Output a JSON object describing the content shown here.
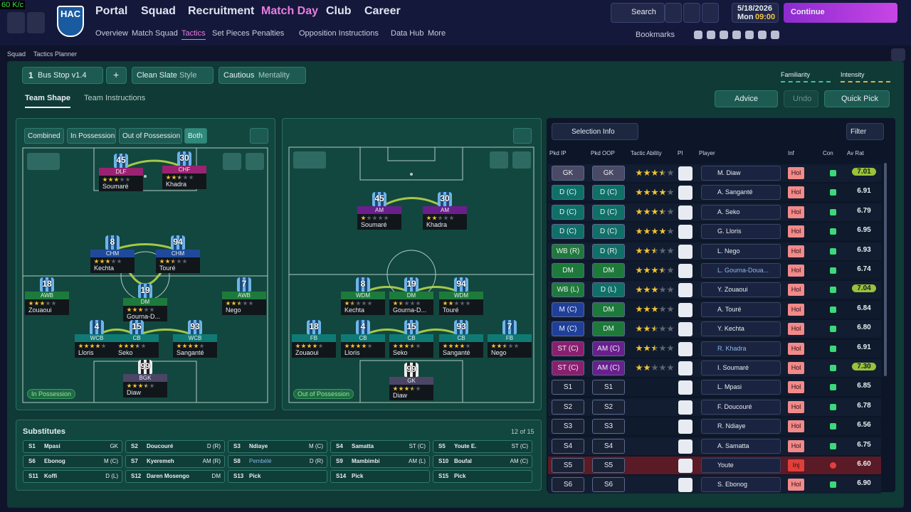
{
  "fps": "60 K/c",
  "header": {
    "badge": "HAC",
    "menu": [
      "Portal",
      "Squad",
      "Recruitment",
      "Match Day",
      "Club",
      "Career"
    ],
    "submenu": [
      "Overview",
      "Match Squad",
      "Tactics",
      "Set Pieces",
      "Penalties",
      "Opposition Instructions",
      "Data Hub",
      "More"
    ],
    "search": "Search",
    "date": "5/18/2026",
    "day": "Mon",
    "time": "09:00",
    "continue": "Continue",
    "bookmarks": "Bookmarks"
  },
  "breadcrumb": [
    "Squad",
    "Tactics Planner"
  ],
  "tactic": {
    "slot": "1",
    "name": "Bus Stop v1.4",
    "add": "+",
    "style": "Clean Slate",
    "style_label": "Style",
    "mentality": "Cautious",
    "mentality_label": "Mentality",
    "familiarity": "Familiarity",
    "intensity": "Intensity"
  },
  "tabs": [
    "Team Shape",
    "Team Instructions"
  ],
  "actions": {
    "advice": "Advice",
    "undo": "Undo",
    "quick_pick": "Quick Pick"
  },
  "shape_filters": [
    "Combined",
    "In Possession",
    "Out of Possession",
    "Both"
  ],
  "pitches": [
    {
      "label": "In Possession",
      "players": [
        {
          "number": "45",
          "role": "DLF",
          "name": "Soumaré",
          "stars": 3
        },
        {
          "number": "30",
          "role": "CHF",
          "name": "Khadra",
          "stars": 2.5
        },
        {
          "number": "8",
          "role": "CHM",
          "name": "Kechta",
          "stars": 3
        },
        {
          "number": "94",
          "role": "CHM",
          "name": "Touré",
          "stars": 2.5
        },
        {
          "number": "18",
          "role": "AWB",
          "name": "Zouaoui",
          "stars": 3
        },
        {
          "number": "19",
          "role": "DM",
          "name": "Gourna-D...",
          "stars": 3
        },
        {
          "number": "7",
          "role": "AWB",
          "name": "Nego",
          "stars": 2.5
        },
        {
          "number": "4",
          "role": "WCB",
          "name": "Lloris",
          "stars": 4
        },
        {
          "number": "15",
          "role": "CB",
          "name": "Seko",
          "stars": 3.5
        },
        {
          "number": "93",
          "role": "WCB",
          "name": "Sanganté",
          "stars": 4
        },
        {
          "number": "99",
          "role": "BGK",
          "name": "Diaw",
          "stars": 3.5
        }
      ]
    },
    {
      "label": "Out of Possession",
      "players": [
        {
          "number": "45",
          "role": "AM",
          "name": "Soumaré",
          "stars": 1
        },
        {
          "number": "30",
          "role": "AM",
          "name": "Khadra",
          "stars": 2
        },
        {
          "number": "8",
          "role": "WDM",
          "name": "Kechta",
          "stars": 1.5
        },
        {
          "number": "19",
          "role": "DM",
          "name": "Gourna-D...",
          "stars": 1.5
        },
        {
          "number": "94",
          "role": "WDM",
          "name": "Touré",
          "stars": 2
        },
        {
          "number": "18",
          "role": "FB",
          "name": "Zouaoui",
          "stars": 4
        },
        {
          "number": "4",
          "role": "CB",
          "name": "Lloris",
          "stars": 4
        },
        {
          "number": "15",
          "role": "CB",
          "name": "Seko",
          "stars": 3.5
        },
        {
          "number": "93",
          "role": "CB",
          "name": "Sanganté",
          "stars": 4
        },
        {
          "number": "7",
          "role": "FB",
          "name": "Nego",
          "stars": 2.5
        },
        {
          "number": "99",
          "role": "GK",
          "name": "Diaw",
          "stars": 3.5
        }
      ]
    }
  ],
  "substitutes": {
    "title": "Substitutes",
    "count": "12 of 15",
    "slots": [
      {
        "slot": "S1",
        "name": "Mpasi",
        "position": "GK"
      },
      {
        "slot": "S2",
        "name": "Doucouré",
        "position": "D (R)"
      },
      {
        "slot": "S3",
        "name": "Ndiaye",
        "position": "M (C)"
      },
      {
        "slot": "S4",
        "name": "Samatta",
        "position": "ST (C)"
      },
      {
        "slot": "S5",
        "name": "Youte E.",
        "position": "ST (C)"
      },
      {
        "slot": "S6",
        "name": "Ebonog",
        "position": "M (C)"
      },
      {
        "slot": "S7",
        "name": "Kyeremeh",
        "position": "AM (R)"
      },
      {
        "slot": "S8",
        "name": "Pembélé",
        "position": "D (R)"
      },
      {
        "slot": "S9",
        "name": "Mambimbi",
        "position": "AM (L)"
      },
      {
        "slot": "S10",
        "name": "Boufal",
        "position": "AM (C)"
      },
      {
        "slot": "S11",
        "name": "Koffi",
        "position": "D (L)"
      },
      {
        "slot": "S12",
        "name": "Daren Mosengo",
        "position": "DM"
      },
      {
        "slot": "S13",
        "name": "Pick"
      },
      {
        "slot": "S14",
        "name": "Pick"
      },
      {
        "slot": "S15",
        "name": "Pick"
      }
    ]
  },
  "selection": {
    "view": "Selection Info",
    "filter": "Filter",
    "columns": [
      "Pkd IP",
      "Pkd OOP",
      "Tactic Ability",
      "PI",
      "Player",
      "Inf",
      "Con",
      "Av Rat"
    ],
    "rows": [
      {
        "ip": "GK",
        "oop": "GK",
        "ability": 3.5,
        "player": "M. Diaw",
        "inf": "Hol",
        "rating": "7.01"
      },
      {
        "ip": "D (C)",
        "oop": "D (C)",
        "ability": 4,
        "player": "A. Sanganté",
        "inf": "Hol",
        "rating": "6.91"
      },
      {
        "ip": "D (C)",
        "oop": "D (C)",
        "ability": 3.5,
        "player": "A. Seko",
        "inf": "Hol",
        "rating": "6.79"
      },
      {
        "ip": "D (C)",
        "oop": "D (C)",
        "ability": 4,
        "player": "G. Lloris",
        "inf": "Hol",
        "rating": "6.95"
      },
      {
        "ip": "WB (R)",
        "oop": "D (R)",
        "ability": 2.5,
        "player": "L. Nego",
        "inf": "Hol",
        "rating": "6.93"
      },
      {
        "ip": "DM",
        "oop": "DM",
        "ability": 3.5,
        "player": "L. Gourna-Doua...",
        "inf": "Hol",
        "rating": "6.74"
      },
      {
        "ip": "WB (L)",
        "oop": "D (L)",
        "ability": 3,
        "player": "Y. Zouaoui",
        "inf": "Hol",
        "rating": "7.04"
      },
      {
        "ip": "M (C)",
        "oop": "DM",
        "ability": 3,
        "player": "A. Touré",
        "inf": "Hol",
        "rating": "6.84"
      },
      {
        "ip": "M (C)",
        "oop": "DM",
        "ability": 2.5,
        "player": "Y. Kechta",
        "inf": "Hol",
        "rating": "6.80"
      },
      {
        "ip": "ST (C)",
        "oop": "AM (C)",
        "ability": 2.5,
        "player": "R. Khadra",
        "inf": "Hol",
        "rating": "6.91"
      },
      {
        "ip": "ST (C)",
        "oop": "AM (C)",
        "ability": 2,
        "player": "I. Soumaré",
        "inf": "Hol",
        "rating": "7.30"
      },
      {
        "ip": "S1",
        "oop": "S1",
        "player": "L. Mpasi",
        "inf": "Hol",
        "rating": "6.85"
      },
      {
        "ip": "S2",
        "oop": "S2",
        "player": "F. Doucouré",
        "inf": "Hol",
        "rating": "6.78"
      },
      {
        "ip": "S3",
        "oop": "S3",
        "player": "R. Ndiaye",
        "inf": "Hol",
        "rating": "6.56"
      },
      {
        "ip": "S4",
        "oop": "S4",
        "player": "A. Samatta",
        "inf": "Hol",
        "rating": "6.75"
      },
      {
        "ip": "S5",
        "oop": "S5",
        "player": "Youte",
        "inf": "Inj",
        "rating": "6.60"
      },
      {
        "ip": "S6",
        "oop": "S6",
        "player": "S. Ebonog",
        "inf": "Hol",
        "rating": "6.90"
      }
    ]
  }
}
